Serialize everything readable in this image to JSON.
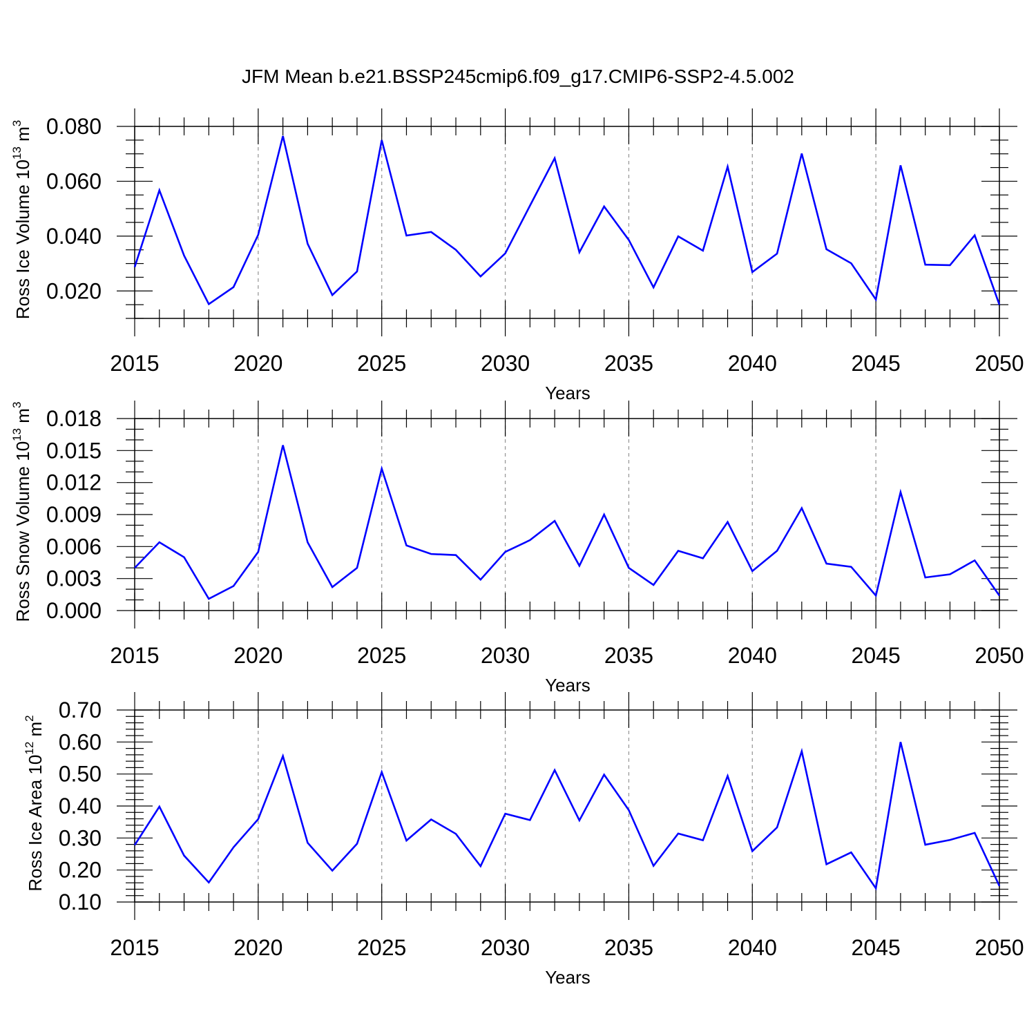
{
  "chart_data": [
    {
      "type": "line",
      "title": "JFM Mean b.e21.BSSP245cmip6.f09_g17.CMIP6-SSP2-4.5.002",
      "xlabel": "Years",
      "ylabel_main": "Ross Ice Volume 10",
      "ylabel_exp": "13",
      "ylabel_unit": "m",
      "ylabel_unit_exp": "3",
      "xlim": [
        2015,
        2050
      ],
      "ylim": [
        0.01,
        0.08
      ],
      "x_ticks": [
        "2015",
        "2020",
        "2025",
        "2030",
        "2035",
        "2040",
        "2045",
        "2050"
      ],
      "y_ticks": [
        "0.020",
        "0.040",
        "0.060",
        "0.080"
      ],
      "x": [
        2015,
        2016,
        2017,
        2018,
        2019,
        2020,
        2021,
        2022,
        2023,
        2024,
        2025,
        2026,
        2027,
        2028,
        2029,
        2030,
        2031,
        2032,
        2033,
        2034,
        2035,
        2036,
        2037,
        2038,
        2039,
        2040,
        2041,
        2042,
        2043,
        2044,
        2045,
        2046,
        2047,
        2048,
        2049,
        2050
      ],
      "series": [
        {
          "name": "Ross Ice Volume",
          "color": "#0000ff",
          "values": [
            0.0287,
            0.0567,
            0.0329,
            0.0152,
            0.0214,
            0.0405,
            0.0765,
            0.0372,
            0.0185,
            0.0271,
            0.075,
            0.0402,
            0.0415,
            0.035,
            0.0253,
            0.0337,
            0.0511,
            0.0684,
            0.0341,
            0.0508,
            0.0386,
            0.0213,
            0.0399,
            0.0347,
            0.0653,
            0.0269,
            0.0336,
            0.0701,
            0.0352,
            0.0301,
            0.0169,
            0.0658,
            0.0296,
            0.0294,
            0.0403,
            0.015
          ]
        }
      ]
    },
    {
      "type": "line",
      "xlabel": "Years",
      "ylabel_main": "Ross Snow Volume 10",
      "ylabel_exp": "13",
      "ylabel_unit": "m",
      "ylabel_unit_exp": "3",
      "xlim": [
        2015,
        2050
      ],
      "ylim": [
        0.0,
        0.018
      ],
      "x_ticks": [
        "2015",
        "2020",
        "2025",
        "2030",
        "2035",
        "2040",
        "2045",
        "2050"
      ],
      "y_ticks": [
        "0.000",
        "0.003",
        "0.006",
        "0.009",
        "0.012",
        "0.015",
        "0.018"
      ],
      "x": [
        2015,
        2016,
        2017,
        2018,
        2019,
        2020,
        2021,
        2022,
        2023,
        2024,
        2025,
        2026,
        2027,
        2028,
        2029,
        2030,
        2031,
        2032,
        2033,
        2034,
        2035,
        2036,
        2037,
        2038,
        2039,
        2040,
        2041,
        2042,
        2043,
        2044,
        2045,
        2046,
        2047,
        2048,
        2049,
        2050
      ],
      "series": [
        {
          "name": "Ross Snow Volume",
          "color": "#0000ff",
          "values": [
            0.004,
            0.0064,
            0.005,
            0.0011,
            0.0023,
            0.0055,
            0.0155,
            0.0064,
            0.0022,
            0.004,
            0.0133,
            0.0061,
            0.0053,
            0.0052,
            0.0029,
            0.0055,
            0.0066,
            0.0084,
            0.0042,
            0.009,
            0.004,
            0.0024,
            0.0056,
            0.0049,
            0.0083,
            0.0037,
            0.0056,
            0.0096,
            0.0044,
            0.0041,
            0.0014,
            0.0111,
            0.0031,
            0.0034,
            0.0047,
            0.0014
          ]
        }
      ]
    },
    {
      "type": "line",
      "xlabel": "Years",
      "ylabel_main": "Ross Ice Area 10",
      "ylabel_exp": "12",
      "ylabel_unit": "m",
      "ylabel_unit_exp": "2",
      "xlim": [
        2015,
        2050
      ],
      "ylim": [
        0.1,
        0.7
      ],
      "x_ticks": [
        "2015",
        "2020",
        "2025",
        "2030",
        "2035",
        "2040",
        "2045",
        "2050"
      ],
      "y_ticks": [
        "0.10",
        "0.20",
        "0.30",
        "0.40",
        "0.50",
        "0.60",
        "0.70"
      ],
      "x": [
        2015,
        2016,
        2017,
        2018,
        2019,
        2020,
        2021,
        2022,
        2023,
        2024,
        2025,
        2026,
        2027,
        2028,
        2029,
        2030,
        2031,
        2032,
        2033,
        2034,
        2035,
        2036,
        2037,
        2038,
        2039,
        2040,
        2041,
        2042,
        2043,
        2044,
        2045,
        2046,
        2047,
        2048,
        2049,
        2050
      ],
      "series": [
        {
          "name": "Ross Ice Area",
          "color": "#0000ff",
          "values": [
            0.278,
            0.398,
            0.245,
            0.161,
            0.271,
            0.359,
            0.556,
            0.285,
            0.198,
            0.282,
            0.506,
            0.292,
            0.358,
            0.313,
            0.212,
            0.376,
            0.356,
            0.512,
            0.355,
            0.498,
            0.387,
            0.213,
            0.314,
            0.293,
            0.494,
            0.259,
            0.333,
            0.571,
            0.218,
            0.255,
            0.143,
            0.6,
            0.279,
            0.294,
            0.316,
            0.15
          ]
        }
      ]
    }
  ],
  "colors": {
    "line": "#0000ff",
    "axis": "#000000",
    "grid": "#999999"
  }
}
